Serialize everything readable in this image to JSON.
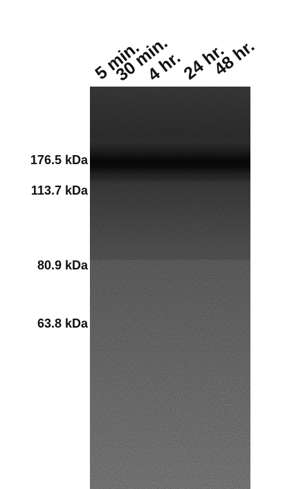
{
  "lanes": [
    "5 min.",
    "30 min.",
    "4 hr.",
    "24 hr.",
    "48 hr."
  ],
  "markers": [
    "176.5 kDa",
    "113.7 kDa",
    "80.9 kDa",
    "63.8 kDa"
  ]
}
